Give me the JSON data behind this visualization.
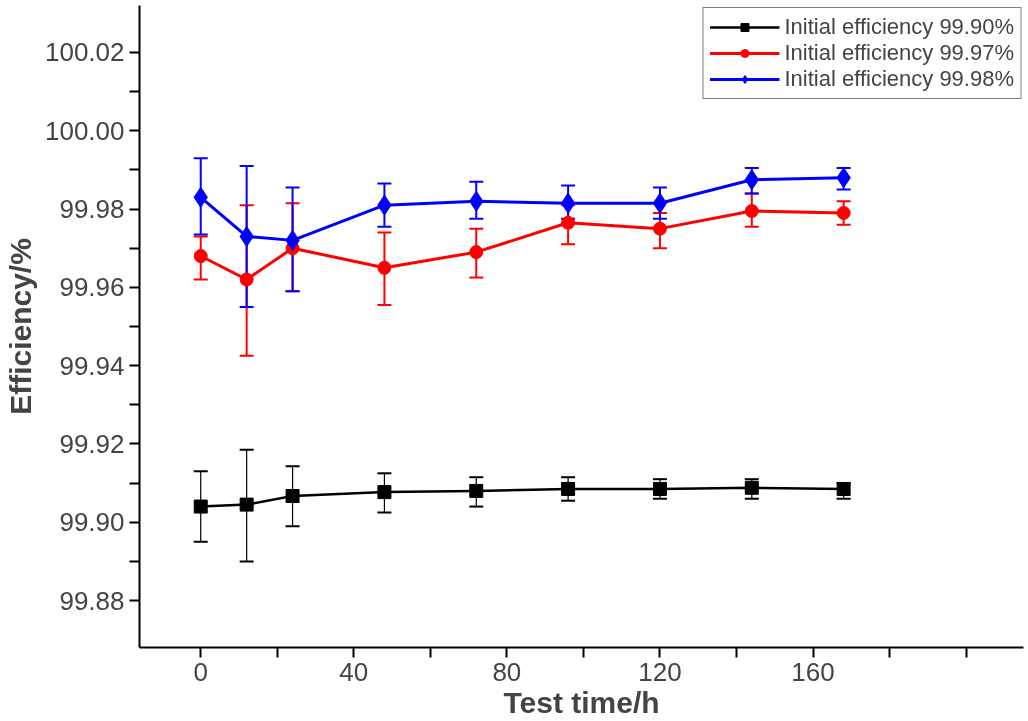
{
  "chart_data": {
    "type": "line",
    "xlabel": "Test time/h",
    "ylabel": "Efficiency/%",
    "x": [
      0,
      12,
      24,
      48,
      72,
      96,
      120,
      144,
      168
    ],
    "series": [
      {
        "name": "Initial efficiency 99.90%",
        "color": "#000000",
        "marker": "square",
        "values": [
          99.904,
          99.9045,
          99.9067,
          99.9077,
          99.908,
          99.9085,
          99.9085,
          99.9088,
          99.9085
        ],
        "errors": [
          [
            99.895,
            99.913
          ],
          [
            99.89,
            99.9185
          ],
          [
            99.899,
            99.9143
          ],
          [
            99.9025,
            99.9125
          ],
          [
            99.904,
            99.9115
          ],
          [
            99.9055,
            99.9115
          ],
          [
            99.906,
            99.911
          ],
          [
            99.906,
            99.911
          ],
          [
            99.906,
            99.91
          ]
        ]
      },
      {
        "name": "Initial efficiency 99.97%",
        "color": "#ff0000",
        "marker": "circle",
        "values": [
          99.968,
          99.962,
          99.97,
          99.965,
          99.969,
          99.9765,
          99.975,
          99.9795,
          99.979
        ],
        "errors": [
          [
            99.962,
            99.973
          ],
          [
            99.9425,
            99.981
          ],
          [
            99.959,
            99.9815
          ],
          [
            99.9555,
            99.974
          ],
          [
            99.9625,
            99.975
          ],
          [
            99.971,
            99.981
          ],
          [
            99.97,
            99.979
          ],
          [
            99.9755,
            99.984
          ],
          [
            99.976,
            99.982
          ]
        ]
      },
      {
        "name": "Initial efficiency 99.98%",
        "color": "#0000ff",
        "marker": "diamond",
        "values": [
          99.983,
          99.973,
          99.972,
          99.981,
          99.982,
          99.9815,
          99.9815,
          99.9875,
          99.988
        ],
        "errors": [
          [
            99.9735,
            99.993
          ],
          [
            99.955,
            99.991
          ],
          [
            99.959,
            99.9855
          ],
          [
            99.9755,
            99.9865
          ],
          [
            99.9775,
            99.987
          ],
          [
            99.9775,
            99.986
          ],
          [
            99.9775,
            99.9855
          ],
          [
            99.984,
            99.9905
          ],
          [
            99.985,
            99.9905
          ]
        ]
      }
    ],
    "xlim": [
      -16,
      215
    ],
    "ylim": [
      99.868,
      100.032
    ],
    "xticks": [
      0,
      {
        "value": 20,
        "label": null
      },
      40,
      {
        "value": 60,
        "label": null
      },
      80,
      {
        "value": 100,
        "label": null
      },
      120,
      {
        "value": 140,
        "label": null
      },
      160,
      {
        "value": 180,
        "label": null
      },
      {
        "value": 200,
        "label": null
      }
    ],
    "yticks": [
      {
        "value": 99.88,
        "label": "99.88"
      },
      {
        "value": 99.89,
        "label": null
      },
      {
        "value": 99.9,
        "label": "99.90"
      },
      {
        "value": 99.91,
        "label": null
      },
      {
        "value": 99.92,
        "label": "99.92"
      },
      {
        "value": 99.93,
        "label": null
      },
      {
        "value": 99.94,
        "label": "99.94"
      },
      {
        "value": 99.95,
        "label": null
      },
      {
        "value": 99.96,
        "label": "99.96"
      },
      {
        "value": 99.97,
        "label": null
      },
      {
        "value": 99.98,
        "label": "99.98"
      },
      {
        "value": 99.99,
        "label": null
      },
      {
        "value": 100.0,
        "label": "100.00"
      },
      {
        "value": 100.01,
        "label": null
      },
      {
        "value": 100.02,
        "label": "100.02"
      }
    ],
    "grid": false,
    "legend": "top right",
    "line_style": "solid"
  }
}
